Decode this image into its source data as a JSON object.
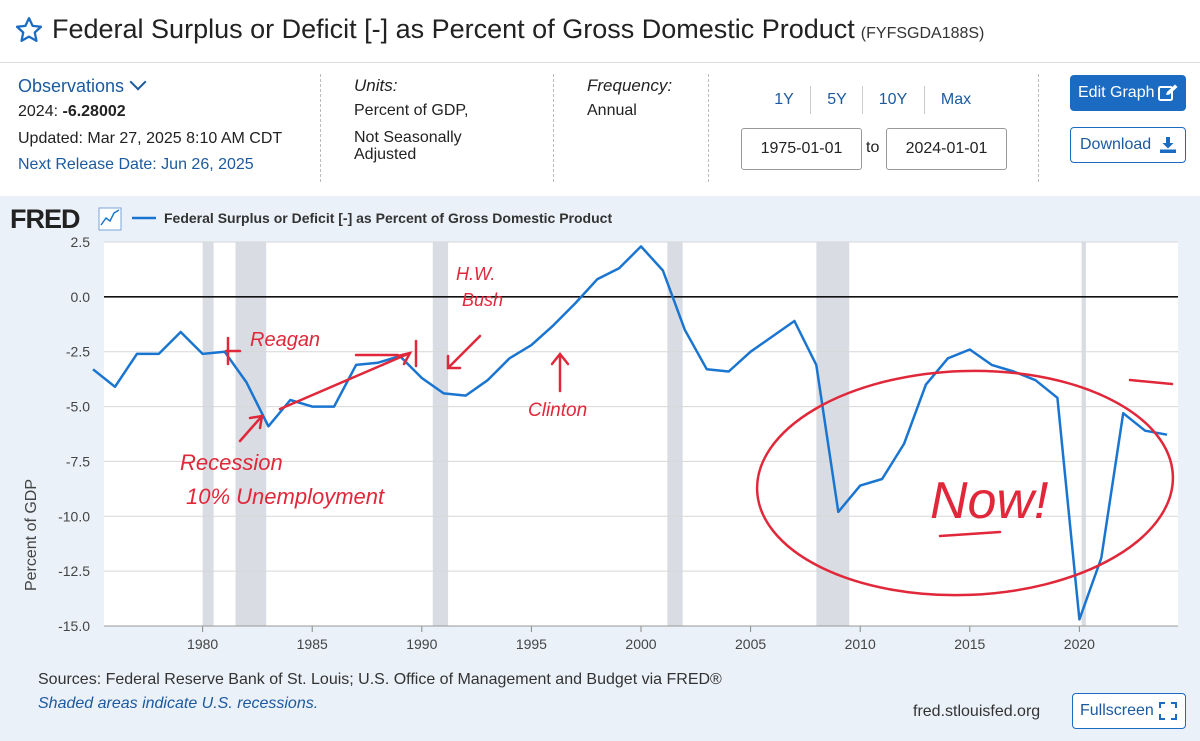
{
  "header": {
    "title": "Federal Surplus or Deficit [-] as Percent of Gross Domestic Product",
    "series_id": "(FYFSGDA188S)",
    "star_icon": "star-outline-icon"
  },
  "observations": {
    "label": "Observations",
    "latest_prefix": "2024: ",
    "latest_value": "-6.28002",
    "updated": "Updated: Mar 27, 2025 8:10 AM CDT",
    "next_release": "Next Release Date: Jun 26, 2025"
  },
  "units": {
    "label": "Units:",
    "line1": "Percent of GDP,",
    "line2": "Not Seasonally Adjusted"
  },
  "frequency": {
    "label": "Frequency:",
    "value": "Annual"
  },
  "range_buttons": [
    "1Y",
    "5Y",
    "10Y",
    "Max"
  ],
  "date_range": {
    "start": "1975-01-01",
    "to_label": "to",
    "end": "2024-01-01"
  },
  "actions": {
    "edit_graph": "Edit Graph",
    "download": "Download",
    "fullscreen": "Fullscreen"
  },
  "colors": {
    "brand_blue": "#1c6bc2",
    "series_line": "#1a75d1",
    "annotation_red": "#e0283a",
    "recession_shade": "#d9dde3"
  },
  "chart_panel": {
    "logo": "FRED",
    "legend_label": "Federal Surplus or Deficit [-] as Percent of Gross Domestic Product",
    "sources": "Sources: Federal Reserve Bank of St. Louis; U.S. Office of Management and Budget via FRED®",
    "shaded_note": "Shaded areas indicate U.S. recessions.",
    "url": "fred.stlouisfed.org"
  },
  "annotations": {
    "reagan": "Reagan",
    "hw_bush_line1": "H.W.",
    "hw_bush_line2": "Bush",
    "clinton": "Clinton",
    "recession_line1": "Recession",
    "recession_line2": "10% Unemployment",
    "now": "Now!"
  },
  "chart_data": {
    "type": "line",
    "title": "",
    "legend": [
      "Federal Surplus or Deficit [-] as Percent of Gross Domestic Product"
    ],
    "xlabel": "",
    "ylabel": "Percent of GDP",
    "xlim": [
      1975.5,
      2024.5
    ],
    "ylim": [
      -15.0,
      2.5
    ],
    "x_ticks": [
      1980,
      1985,
      1990,
      1995,
      2000,
      2005,
      2010,
      2015,
      2020
    ],
    "y_ticks": [
      2.5,
      0.0,
      -2.5,
      -5.0,
      -7.5,
      -10.0,
      -12.5,
      -15.0
    ],
    "y_tick_labels": [
      "2.5",
      "0.0",
      "-2.5",
      "-5.0",
      "-7.5",
      "-10.0",
      "-12.5",
      "-15.0"
    ],
    "grid": "horizontal",
    "zero_line": true,
    "recession_shading": [
      [
        1980.0,
        1980.5
      ],
      [
        1981.5,
        1982.9
      ],
      [
        1990.5,
        1991.2
      ],
      [
        2001.2,
        2001.9
      ],
      [
        2008.0,
        2009.5
      ],
      [
        2020.1,
        2020.3
      ]
    ],
    "series": [
      {
        "name": "Federal Surplus or Deficit [-] as Percent of Gross Domestic Product",
        "x": [
          1975,
          1976,
          1977,
          1978,
          1979,
          1980,
          1981,
          1982,
          1983,
          1984,
          1985,
          1986,
          1987,
          1988,
          1989,
          1990,
          1991,
          1992,
          1993,
          1994,
          1995,
          1996,
          1997,
          1998,
          1999,
          2000,
          2001,
          2002,
          2003,
          2004,
          2005,
          2006,
          2007,
          2008,
          2009,
          2010,
          2011,
          2012,
          2013,
          2014,
          2015,
          2016,
          2017,
          2018,
          2019,
          2020,
          2021,
          2022,
          2023,
          2024
        ],
        "values": [
          -3.3,
          -4.1,
          -2.6,
          -2.6,
          -1.6,
          -2.6,
          -2.5,
          -3.9,
          -5.9,
          -4.7,
          -5.0,
          -5.0,
          -3.1,
          -3.0,
          -2.7,
          -3.7,
          -4.4,
          -4.5,
          -3.8,
          -2.8,
          -2.2,
          -1.3,
          -0.3,
          0.8,
          1.3,
          2.3,
          1.2,
          -1.5,
          -3.3,
          -3.4,
          -2.5,
          -1.8,
          -1.1,
          -3.1,
          -9.8,
          -8.6,
          -8.3,
          -6.7,
          -4.0,
          -2.8,
          -2.4,
          -3.1,
          -3.4,
          -3.8,
          -4.6,
          -14.7,
          -11.9,
          -5.3,
          -6.1,
          -6.28
        ]
      }
    ]
  }
}
